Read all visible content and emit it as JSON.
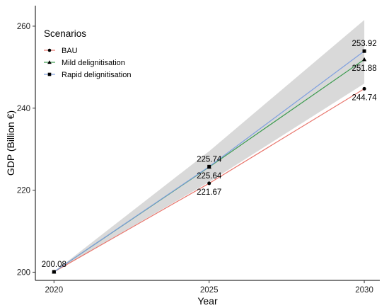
{
  "chart_data": {
    "type": "line",
    "title": "",
    "xlabel": "Year",
    "ylabel": "GDP (Billion €)",
    "x": [
      2020,
      2025,
      2030
    ],
    "xlim": [
      2019.4,
      2030.5
    ],
    "ylim": [
      198,
      265
    ],
    "xticks": [
      "2020",
      "2025",
      "2030"
    ],
    "yticks": [
      "200",
      "220",
      "240",
      "260"
    ],
    "grid": false,
    "legend": {
      "title": "Scenarios",
      "position": "top-left"
    },
    "series": [
      {
        "name": "BAU",
        "marker": "circle",
        "color": "#e8766d",
        "values": [
          200.08,
          221.67,
          244.74
        ]
      },
      {
        "name": "Mild delignitisation",
        "marker": "triangle",
        "color": "#3a9a4d",
        "values": [
          200.08,
          225.64,
          251.88
        ]
      },
      {
        "name": "Rapid delignitisation",
        "marker": "square",
        "color": "#7e9fe0",
        "values": [
          200.08,
          225.74,
          253.92
        ]
      }
    ],
    "confidence_band": {
      "color": "#d9d9d9",
      "lower": [
        200.08,
        222.0,
        246.0
      ],
      "upper": [
        200.08,
        229.5,
        261.5
      ]
    },
    "data_labels": [
      {
        "text": "200.08",
        "x": 2020,
        "y": 200.08,
        "placement": "above"
      },
      {
        "text": "221.67",
        "x": 2025,
        "y": 221.67,
        "placement": "below"
      },
      {
        "text": "225.64",
        "x": 2025,
        "y": 225.64,
        "placement": "below"
      },
      {
        "text": "225.74",
        "x": 2025,
        "y": 225.74,
        "placement": "above"
      },
      {
        "text": "244.74",
        "x": 2030,
        "y": 244.74,
        "placement": "below"
      },
      {
        "text": "251.88",
        "x": 2030,
        "y": 251.88,
        "placement": "below"
      },
      {
        "text": "253.92",
        "x": 2030,
        "y": 253.92,
        "placement": "above"
      }
    ]
  }
}
